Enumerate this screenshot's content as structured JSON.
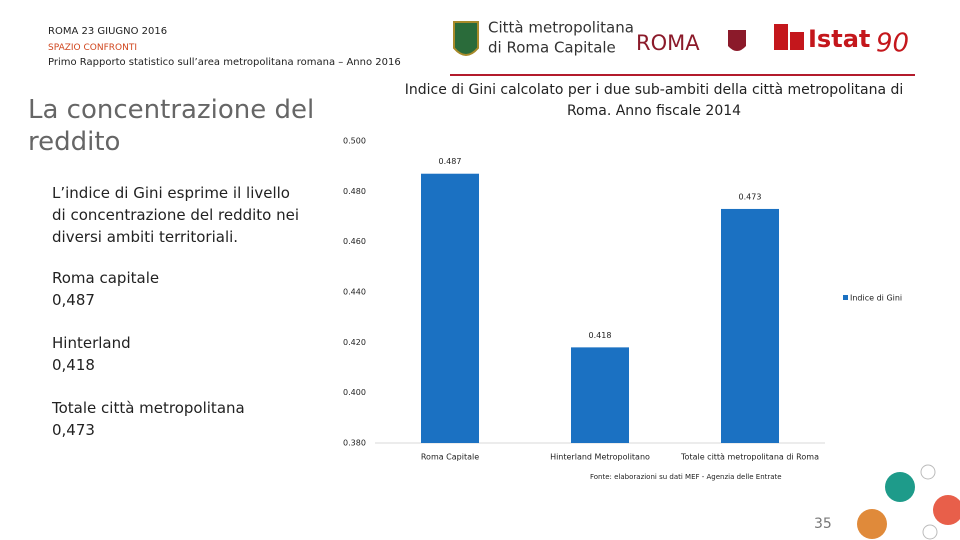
{
  "header": {
    "date": "ROMA 23 GIUGNO 2016",
    "section": "SPAZIO CONFRONTI",
    "report": "Primo Rapporto statistico sull’area metropolitana romana – Anno 2016"
  },
  "logos": {
    "city_line1": "Città metropolitana",
    "city_line2": "di Roma Capitale",
    "roma": "ROMA",
    "istat": "Istat",
    "anniversary": "90"
  },
  "slide": {
    "title": "La concentrazione del reddito",
    "description": "L’indice di Gini esprime il livello di concentrazione del reddito nei diversi ambiti territoriali.",
    "items": [
      {
        "label": "Roma capitale",
        "value": "0,487"
      },
      {
        "label": "Hinterland",
        "value": "0,418"
      },
      {
        "label": "Totale città metropolitana",
        "value": "0,473"
      }
    ]
  },
  "chart_data": {
    "type": "bar",
    "title": "Indice di Gini calcolato per i due sub-ambiti della città metropolitana di Roma. Anno fiscale 2014",
    "categories": [
      "Roma Capitale",
      "Hinterland Metropolitano",
      "Totale città metropolitana di Roma"
    ],
    "series": [
      {
        "name": "Indice di Gini",
        "color": "#1b71c2",
        "values": [
          0.487,
          0.418,
          0.473
        ]
      }
    ],
    "ylim": [
      0.38,
      0.5
    ],
    "yticks": [
      {
        "value": 0.38,
        "label": "0.380"
      },
      {
        "value": 0.4,
        "label": "0.400"
      },
      {
        "value": 0.42,
        "label": "0.420"
      },
      {
        "value": 0.44,
        "label": "0.440"
      },
      {
        "value": 0.46,
        "label": "0.460"
      },
      {
        "value": 0.48,
        "label": "0.480"
      },
      {
        "value": 0.5,
        "label": "0.500"
      }
    ],
    "grid": false,
    "legend": "right"
  },
  "source": "Fonte: elaborazioni su dati MEF - Agenzia delle Entrate",
  "page_number": "35"
}
